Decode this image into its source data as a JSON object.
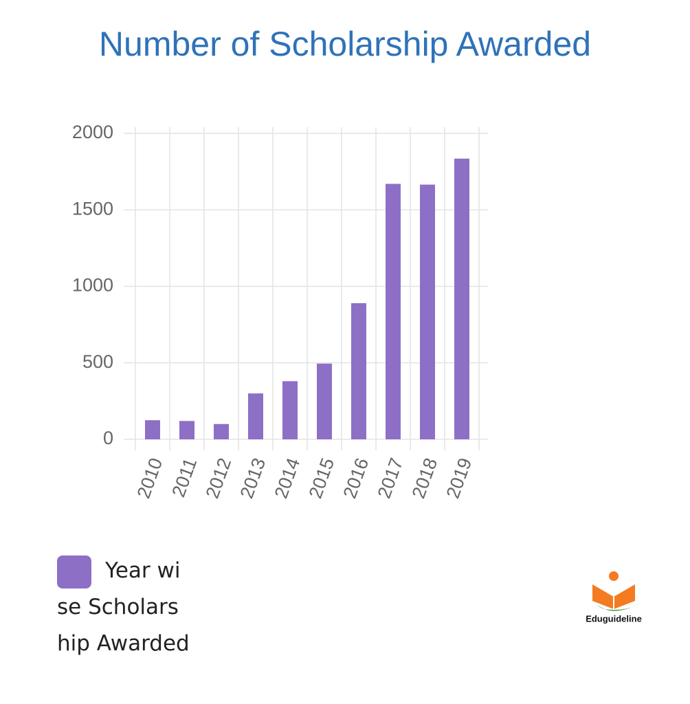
{
  "chart_data": {
    "type": "bar",
    "title": "Number of Scholarship Awarded",
    "categories": [
      "2010",
      "2011",
      "2012",
      "2013",
      "2014",
      "2015",
      "2016",
      "2017",
      "2018",
      "2019"
    ],
    "series": [
      {
        "name": "Year wise Scholarship Awarded",
        "color": "#8e6fc6",
        "values": [
          125,
          120,
          100,
          300,
          380,
          495,
          890,
          1670,
          1665,
          1835
        ]
      }
    ],
    "ylim": [
      0,
      2000
    ],
    "yticks": [
      0,
      500,
      1000,
      1500,
      2000
    ],
    "grid": true
  },
  "logo": {
    "text": "Eduguideline"
  }
}
